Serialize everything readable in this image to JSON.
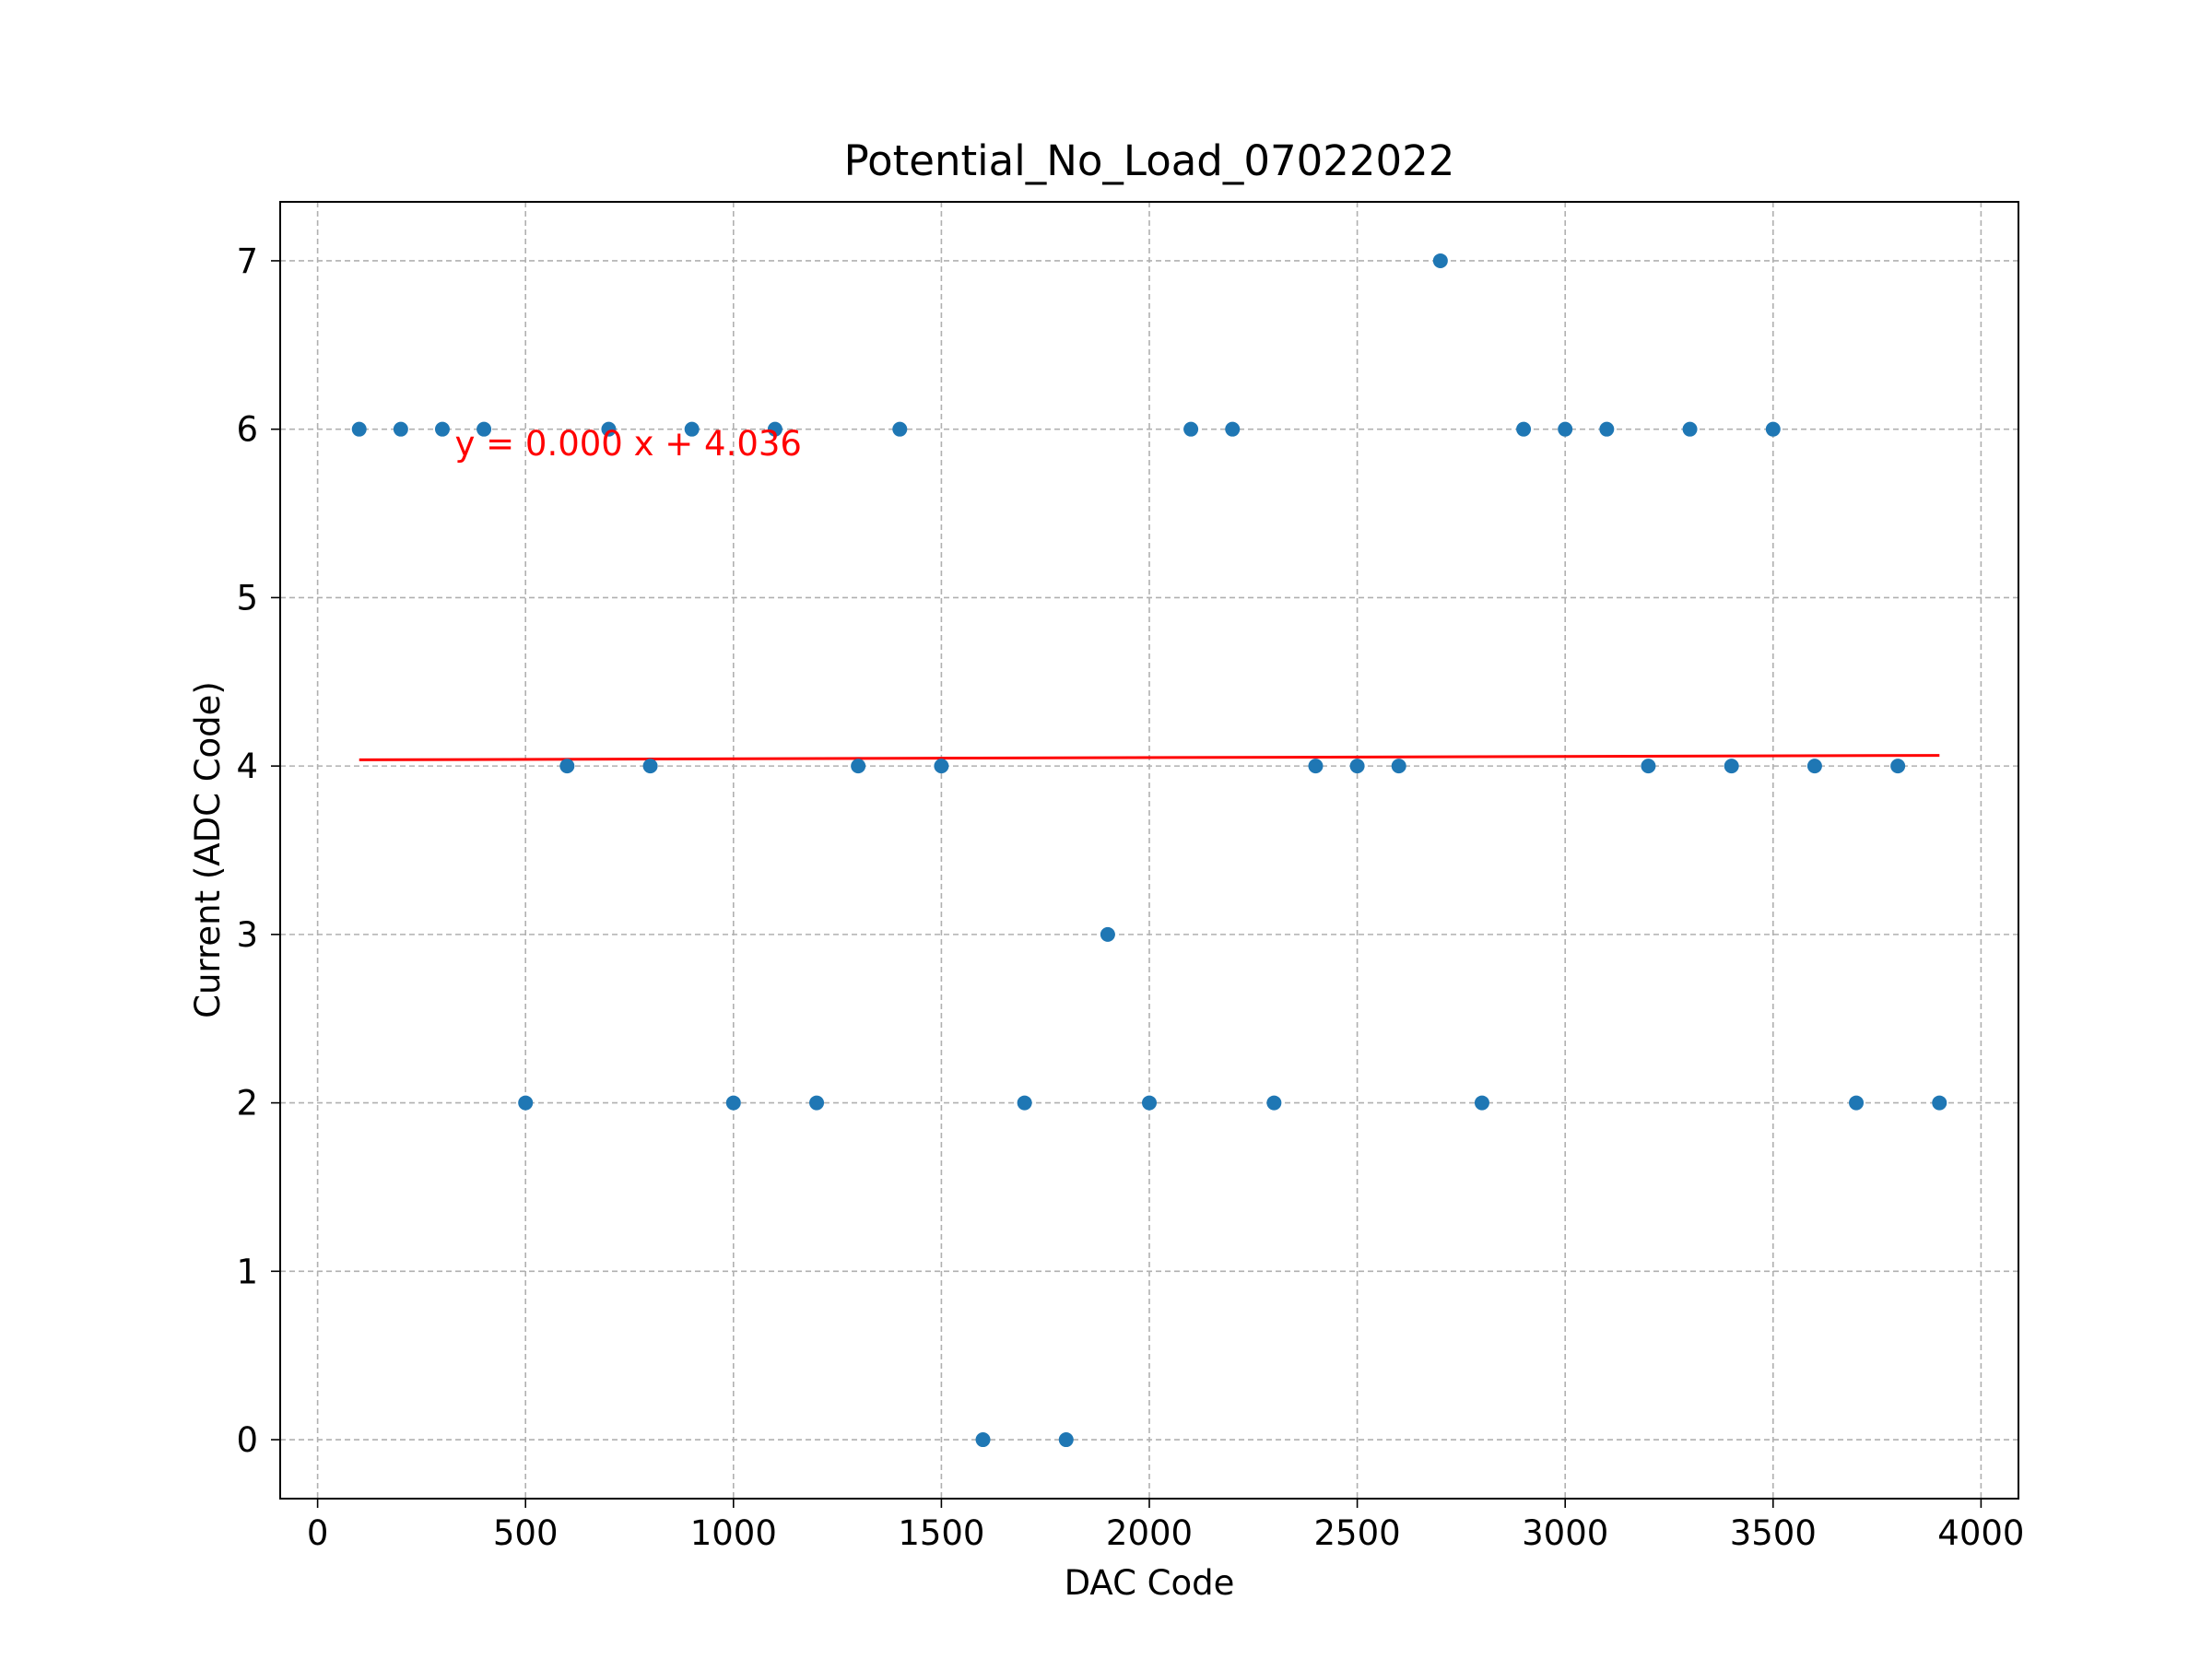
{
  "chart_data": {
    "type": "scatter",
    "title": "Potential_No_Load_07022022",
    "xlabel": "DAC Code",
    "ylabel": "Current (ADC Code)",
    "xlim": [
      -90,
      4090
    ],
    "ylim": [
      -0.35,
      7.35
    ],
    "x_ticks": [
      0,
      500,
      1000,
      1500,
      2000,
      2500,
      3000,
      3500,
      4000
    ],
    "y_ticks": [
      0,
      1,
      2,
      3,
      4,
      5,
      6,
      7
    ],
    "grid": true,
    "marker_color": "#1f77b4",
    "fit_color": "#ff0000",
    "series": [
      {
        "x": [
          100,
          200,
          300,
          400,
          500,
          600,
          700,
          800,
          900,
          1000,
          1100,
          1200,
          1300,
          1400,
          1500,
          1600,
          1700,
          1800,
          1900,
          2000,
          2100,
          2200,
          2300,
          2400,
          2500,
          2600,
          2700,
          2800,
          2900,
          3000,
          3100,
          3200,
          3300,
          3400,
          3500,
          3600,
          3700,
          3800,
          3900
        ],
        "y": [
          6,
          6,
          6,
          6,
          2,
          4,
          6,
          4,
          6,
          2,
          6,
          2,
          4,
          6,
          4,
          0,
          2,
          0,
          3,
          2,
          6,
          6,
          2,
          4,
          4,
          4,
          7,
          2,
          6,
          6,
          6,
          4,
          6,
          4,
          6,
          4,
          2,
          4,
          2
        ]
      }
    ],
    "fit_line": {
      "slope": 7e-06,
      "intercept": 4.036,
      "x_range": [
        100,
        3900
      ],
      "label": "y = 0.000 x + 4.036",
      "label_at": [
        330,
        5.8
      ]
    }
  }
}
